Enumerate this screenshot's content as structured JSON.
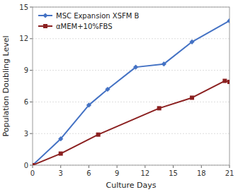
{
  "chart_data": {
    "type": "line",
    "xlabel": "Culture Days",
    "ylabel": "Population Doubling Level",
    "series": [
      {
        "name": "MSC Expansion XSFM B",
        "color": "#4472c4",
        "marker": "diamond",
        "x": [
          0,
          3,
          6,
          8,
          11,
          14,
          17,
          21
        ],
        "values": [
          0,
          2.5,
          5.7,
          7.2,
          9.3,
          9.6,
          11.7,
          13.7
        ]
      },
      {
        "name": "αMEM+10%FBS",
        "color": "#8b2020",
        "marker": "square",
        "x": [
          0,
          3,
          7,
          13.5,
          17,
          20.5,
          21
        ],
        "values": [
          0,
          1.1,
          2.9,
          5.4,
          6.4,
          8.0,
          7.9
        ]
      }
    ],
    "xlim": [
      0,
      21
    ],
    "ylim": [
      0,
      15
    ],
    "xticks": [
      0,
      3,
      6,
      9,
      12,
      15,
      18,
      21
    ],
    "yticks": [
      0,
      3,
      6,
      9,
      12,
      15
    ],
    "grid": "y",
    "legend": "upper left"
  }
}
